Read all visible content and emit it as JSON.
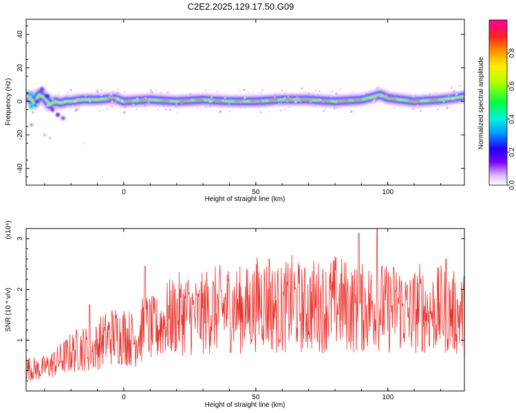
{
  "title": "C2E2.2025.129.17.50.G09",
  "chart_data": [
    {
      "type": "heatmap",
      "xlabel": "Height of straight line (km)",
      "ylabel": "Frequency (Hz)",
      "xlim": [
        -37,
        129
      ],
      "ylim": [
        -50,
        49
      ],
      "x_ticks": [
        0,
        50,
        100
      ],
      "y_ticks": [
        40,
        20,
        0,
        -20,
        -40
      ],
      "ridge": {
        "x": [
          -36,
          -34,
          -32,
          -30,
          -28,
          -26,
          -24,
          -22,
          -20,
          -16,
          -10,
          -4,
          0,
          10,
          20,
          30,
          40,
          50,
          60,
          70,
          80,
          90,
          95,
          97,
          100,
          110,
          120,
          125,
          129
        ],
        "y": [
          3,
          -1,
          4,
          2,
          -2,
          0,
          -1,
          0,
          0,
          1,
          1,
          2,
          0,
          1,
          0,
          1,
          0,
          0,
          1,
          1,
          0,
          1,
          3,
          4,
          2,
          0,
          1,
          2,
          3
        ]
      },
      "colorbar": {
        "label": "Normalized spectral amplitude",
        "range": [
          0,
          1
        ],
        "ticks": [
          "0.0",
          "0.2",
          "0.4",
          "0.6",
          "0.8"
        ],
        "tick_values": [
          0.0,
          0.2,
          0.4,
          0.6,
          0.8
        ]
      }
    },
    {
      "type": "line",
      "xlabel": "Height of straight line (km)",
      "ylabel": "SNR (10 * v/v)",
      "multiplier": "(x10⁴)",
      "xlim": [
        -37,
        129
      ],
      "ylim": [
        0,
        3.2
      ],
      "x_ticks": [
        0,
        50,
        100
      ],
      "y_ticks": [
        1,
        2,
        3
      ],
      "series": [
        {
          "color": "#e8302b",
          "x": [
            -36,
            -32,
            -28,
            -24,
            -20,
            -16,
            -12,
            -8,
            -4,
            0,
            4,
            8,
            12,
            16,
            20,
            24,
            28,
            32,
            36,
            40,
            44,
            48,
            52,
            56,
            60,
            64,
            68,
            72,
            76,
            80,
            84,
            88,
            92,
            96,
            100,
            104,
            108,
            112,
            116,
            120,
            124,
            128
          ],
          "y": [
            0.45,
            0.42,
            0.5,
            0.62,
            0.75,
            0.85,
            0.8,
            1.0,
            1.1,
            1.1,
            1.0,
            1.25,
            1.2,
            1.4,
            1.5,
            1.55,
            1.45,
            1.6,
            1.6,
            1.65,
            1.6,
            1.6,
            1.8,
            1.65,
            1.6,
            1.75,
            1.6,
            1.7,
            1.65,
            1.75,
            1.7,
            1.6,
            1.65,
            1.7,
            1.6,
            1.7,
            1.5,
            1.65,
            1.55,
            1.6,
            1.55,
            1.5
          ],
          "peaks": [
            [
              -13,
              1.7
            ],
            [
              8,
              2.45
            ],
            [
              55,
              2.6
            ],
            [
              89,
              3.1
            ],
            [
              96,
              3.2
            ],
            [
              122,
              2.6
            ]
          ]
        }
      ]
    }
  ],
  "colors": {
    "line": "#e8302b",
    "axis": "#000000",
    "background": "#ffffff"
  }
}
